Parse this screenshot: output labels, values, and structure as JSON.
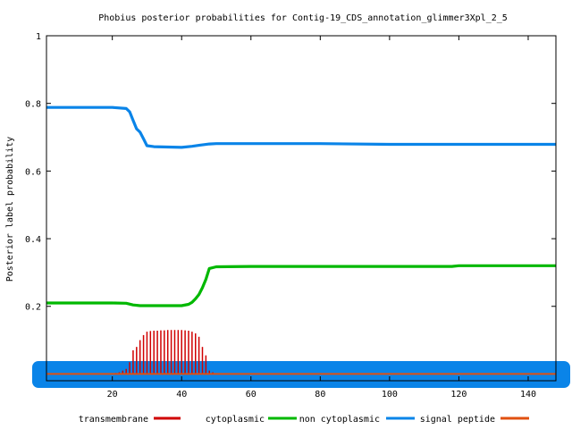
{
  "chart_data": {
    "type": "line",
    "title": "Phobius posterior probabilities for Contig-19_CDS_annotation_glimmer3Xpl_2_5",
    "xlabel": "",
    "ylabel": "Posterior label probability",
    "xlim": [
      1,
      148
    ],
    "ylim": [
      -0.02,
      1
    ],
    "x_ticks": [
      20,
      40,
      60,
      80,
      100,
      120,
      140
    ],
    "y_ticks": [
      0.2,
      0.4,
      0.6,
      0.8,
      1
    ],
    "y_tick_labels": [
      "0.2",
      "0.4",
      "0.6",
      "0.8",
      "1"
    ],
    "grid": false,
    "legend_position": "bottom",
    "legend": [
      "transmembrane",
      "cytoplasmic",
      "non cytoplasmic",
      "signal peptide"
    ],
    "series": [
      {
        "name": "non cytoplasmic",
        "color": "#0a84e8",
        "style": "line",
        "x": [
          1,
          10,
          20,
          24,
          25,
          26,
          27,
          28,
          29,
          30,
          32,
          40,
          43,
          45,
          48,
          50,
          60,
          80,
          100,
          120,
          148
        ],
        "y": [
          0.788,
          0.788,
          0.788,
          0.785,
          0.775,
          0.75,
          0.725,
          0.715,
          0.695,
          0.675,
          0.672,
          0.67,
          0.673,
          0.676,
          0.68,
          0.681,
          0.681,
          0.681,
          0.679,
          0.679,
          0.679
        ]
      },
      {
        "name": "cytoplasmic",
        "color": "#00b800",
        "style": "line",
        "x": [
          1,
          10,
          20,
          24,
          26,
          28,
          30,
          35,
          40,
          42,
          43,
          44,
          45,
          46,
          47,
          48,
          50,
          60,
          80,
          100,
          118,
          120,
          148
        ],
        "y": [
          0.21,
          0.21,
          0.21,
          0.209,
          0.204,
          0.202,
          0.202,
          0.202,
          0.202,
          0.206,
          0.212,
          0.222,
          0.235,
          0.255,
          0.28,
          0.312,
          0.317,
          0.318,
          0.318,
          0.318,
          0.318,
          0.32,
          0.32
        ]
      },
      {
        "name": "transmembrane",
        "color": "#d00000",
        "style": "impulses",
        "x": [
          21,
          22,
          23,
          24,
          25,
          26,
          27,
          28,
          29,
          30,
          31,
          32,
          33,
          34,
          35,
          36,
          37,
          38,
          39,
          40,
          41,
          42,
          43,
          44,
          45,
          46,
          47,
          48,
          49,
          50
        ],
        "y": [
          0.003,
          0.005,
          0.01,
          0.015,
          0.035,
          0.07,
          0.08,
          0.1,
          0.115,
          0.125,
          0.127,
          0.128,
          0.128,
          0.129,
          0.129,
          0.13,
          0.13,
          0.13,
          0.13,
          0.13,
          0.129,
          0.128,
          0.125,
          0.12,
          0.11,
          0.08,
          0.055,
          0.01,
          0.005,
          0.002
        ]
      },
      {
        "name": "signal peptide",
        "color": "#e05010",
        "style": "line",
        "x": [
          1,
          148
        ],
        "y": [
          0.0,
          0.0
        ]
      }
    ]
  }
}
